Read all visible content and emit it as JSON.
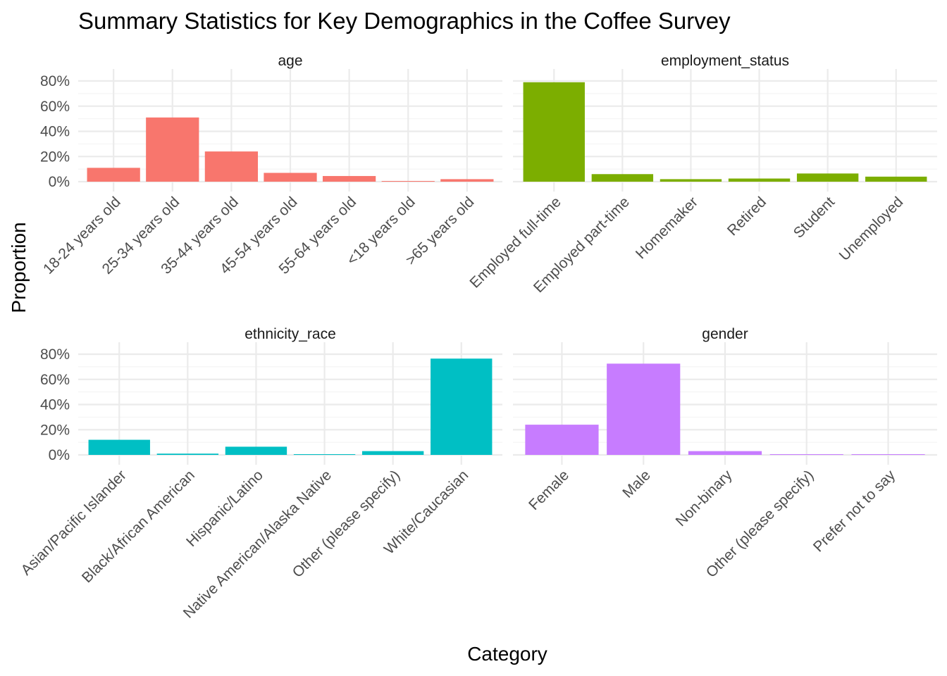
{
  "chart_data": {
    "type": "bar",
    "title": "Summary Statistics for Key Demographics in the Coffee Survey",
    "xlabel": "Category",
    "ylabel": "Proportion",
    "ylim": [
      0,
      0.8
    ],
    "y_ticks": [
      "0%",
      "20%",
      "40%",
      "60%",
      "80%"
    ],
    "y_tick_values": [
      0,
      0.2,
      0.4,
      0.6,
      0.8
    ],
    "grid": true,
    "panels": [
      {
        "name": "age",
        "color": "#F8766D",
        "categories": [
          "18-24 years old",
          "25-34 years old",
          "35-44 years old",
          "45-54 years old",
          "55-64 years old",
          "<18 years old",
          ">65 years old"
        ],
        "values": [
          0.11,
          0.51,
          0.24,
          0.07,
          0.045,
          0.005,
          0.02
        ]
      },
      {
        "name": "employment_status",
        "color": "#7CAE00",
        "categories": [
          "Employed full-time",
          "Employed part-time",
          "Homemaker",
          "Retired",
          "Student",
          "Unemployed"
        ],
        "values": [
          0.79,
          0.06,
          0.02,
          0.025,
          0.065,
          0.04
        ]
      },
      {
        "name": "ethnicity_race",
        "color": "#00BFC4",
        "categories": [
          "Asian/Pacific Islander",
          "Black/African American",
          "Hispanic/Latino",
          "Native American/Alaska Native",
          "Other (please specify)",
          "White/Caucasian"
        ],
        "values": [
          0.12,
          0.01,
          0.065,
          0.005,
          0.03,
          0.765
        ]
      },
      {
        "name": "gender",
        "color": "#C77CFF",
        "categories": [
          "Female",
          "Male",
          "Non-binary",
          "Other (please specify)",
          "Prefer not to say"
        ],
        "values": [
          0.24,
          0.725,
          0.03,
          0.005,
          0.005
        ]
      }
    ]
  }
}
